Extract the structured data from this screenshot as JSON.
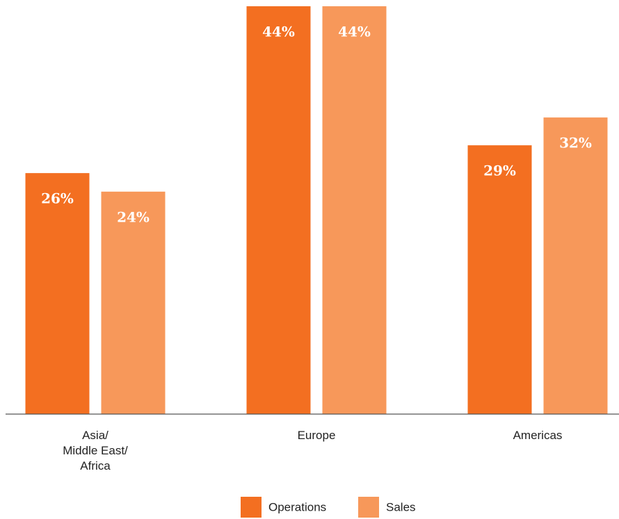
{
  "chart_data": {
    "type": "bar",
    "categories": [
      "Asia/\nMiddle East/\nAfrica",
      "Europe",
      "Americas"
    ],
    "series": [
      {
        "name": "Operations",
        "color": "#f36f21",
        "values": [
          26,
          44,
          29
        ],
        "value_labels": [
          "26%",
          "44%",
          "29%"
        ]
      },
      {
        "name": "Sales",
        "color": "#f7985a",
        "values": [
          24,
          44,
          32
        ],
        "value_labels": [
          "24%",
          "44%",
          "32%"
        ]
      }
    ],
    "ylim": [
      0,
      44
    ],
    "grid": false
  }
}
